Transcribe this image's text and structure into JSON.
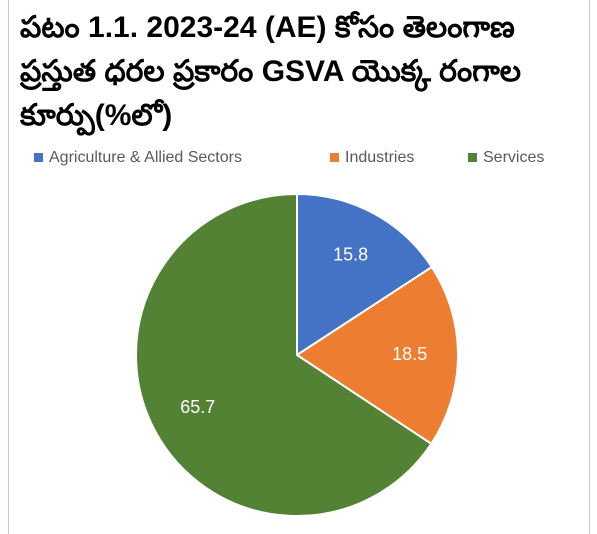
{
  "chart_data": {
    "type": "pie",
    "title": "పటం 1.1. 2023-24 (AE) కోసం తెలంగాణ ప్రస్తుత ధరల ప్రకారం GSVA యొక్క రంగాల కూర్పు(%లో)",
    "categories": [
      "Agriculture & Allied Sectors",
      "Industries",
      "Services"
    ],
    "values": [
      15.8,
      18.5,
      65.7
    ],
    "colors": [
      "#4472c4",
      "#ed7d31",
      "#548235"
    ],
    "legend": "top"
  }
}
